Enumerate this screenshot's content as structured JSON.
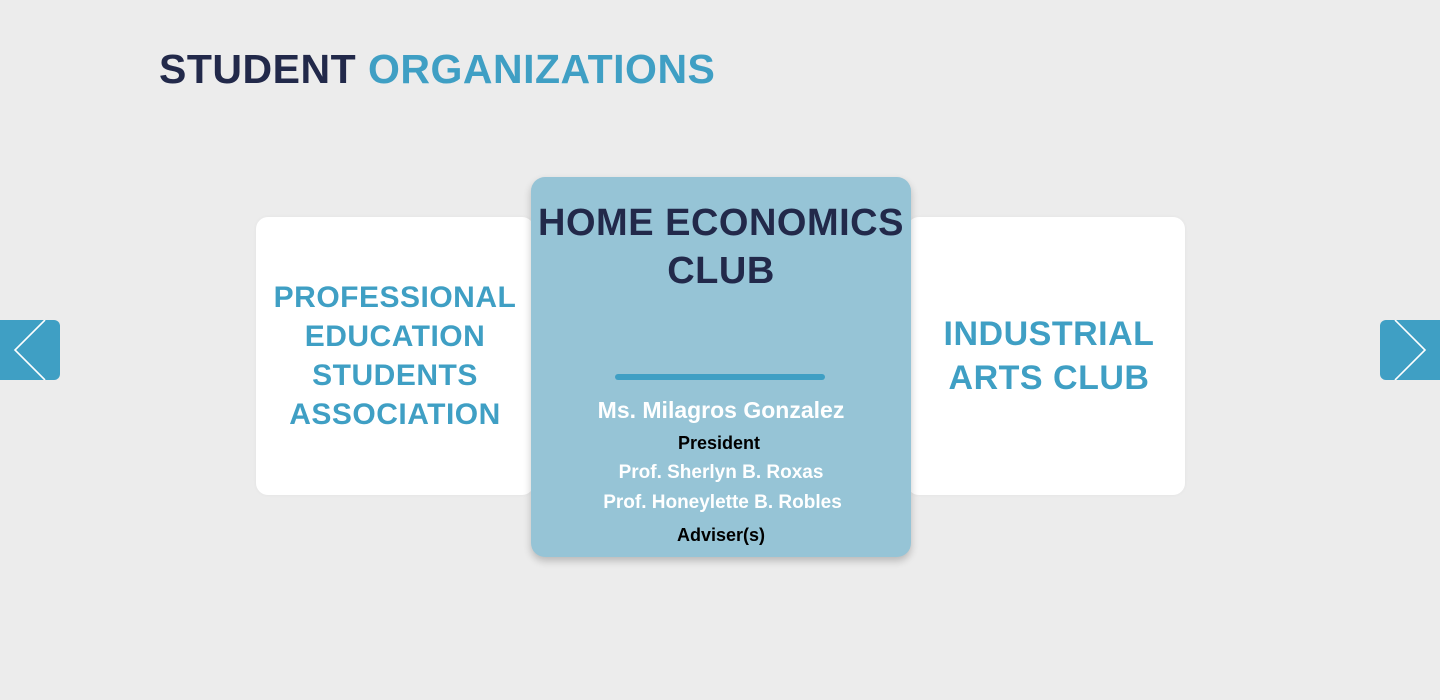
{
  "header": {
    "title_part1": "STUDENT",
    "title_part2": "ORGANIZATIONS"
  },
  "carousel": {
    "prev_icon": "chevron-left-icon",
    "next_icon": "chevron-right-icon",
    "left_card": {
      "title": "PROFESSIONAL EDUCATION STUDENTS ASSOCIATION"
    },
    "center_card": {
      "title": "HOME ECONOMICS CLUB",
      "president_name": "Ms. Milagros Gonzalez",
      "president_label": "President",
      "advisers": [
        "Prof. Sherlyn B. Roxas",
        "Prof. Honeylette B. Robles"
      ],
      "adviser_label": "Adviser(s)"
    },
    "right_card": {
      "title": "INDUSTRIAL ARTS CLUB"
    }
  },
  "colors": {
    "background": "#ececec",
    "dark_navy": "#22294a",
    "accent_blue": "#3f9fc4",
    "active_card": "#96c4d6",
    "card_white": "#ffffff"
  }
}
